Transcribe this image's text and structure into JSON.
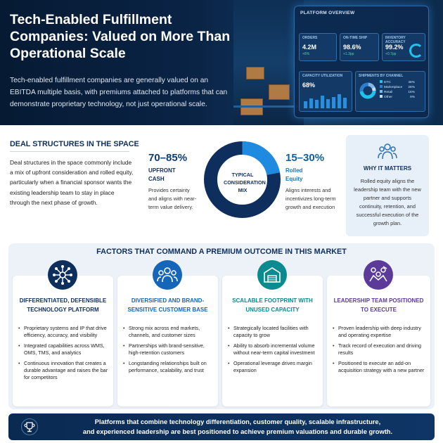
{
  "hero": {
    "title": "Tech-Enabled Fulfillment Companies: Valued on More Than Operational Scale",
    "subtitle": "Tech-enabled fulfillment companies are generally valued on an EBITDA multiple basis, with premiums attached to platforms that can demonstrate proprietary technology, not just operational scale."
  },
  "dashboard": {
    "title": "PLATFORM OVERVIEW",
    "orders": {
      "label": "ORDERS",
      "value": "4.2M",
      "delta": "+8%"
    },
    "on_time": {
      "label": "ON-TIME SHIP",
      "value": "98.6%",
      "delta": "+1.3pp"
    },
    "inventory": {
      "label": "INVENTORY ACCURACY",
      "value": "99.2%",
      "delta": "+0.7pp"
    },
    "capacity": {
      "label": "CAPACITY UTILIZATION",
      "value": "68%"
    },
    "shipments": {
      "label": "SHIPMENTS BY CHANNEL",
      "rows": [
        {
          "name": "DTC",
          "value": "48%"
        },
        {
          "name": "Marketplace",
          "value": "28%"
        },
        {
          "name": "Retail",
          "value": "16%"
        },
        {
          "name": "Other",
          "value": "8%"
        }
      ]
    }
  },
  "deal": {
    "heading": "DEAL STRUCTURES IN THE SPACE",
    "body": "Deal structures in the space commonly include a mix of upfront consideration and rolled equity, particularly when a financial sponsor wants the existing leadership team to stay in place through the next phase of growth.",
    "upfront": {
      "pct": "70–85%",
      "label_1": "UPFRONT",
      "label_2": "CASH",
      "text": "Provides certainty and aligns with near-term value delivery."
    },
    "rolled": {
      "pct": "15–30%",
      "label_1": "Rolled",
      "label_2": "Equity",
      "text": "Aligns interests and incentivizes long-term growth and execution"
    },
    "center_1": "TYPICAL",
    "center_2": "CONSIDERATION",
    "center_3": "MIX",
    "upfront_share": 0.78,
    "why": {
      "heading": "WHY IT MATTERS",
      "text": "Rolled equity aligns the leadership team with the new partner and supports continuity, retention, and successful execution of the growth plan."
    }
  },
  "factors": {
    "heading": "FACTORS THAT COMMAND A PREMIUM OUTCOME IN THIS MARKET",
    "cards": [
      {
        "title": "DIFFERENTIATED, DEFENSIBLE TECHNOLOGY PLATFORM",
        "icon": "network-icon",
        "accent": "#0e2f5e",
        "items": [
          "Proprietary systems and IP that drive efficiency, accuracy, and visibility",
          "Integrated capabilities across WMS, OMS, TMS, and analytics",
          "Continuous innovation that creates a durable advantage and raises the bar for competitors"
        ]
      },
      {
        "title": "DIVERSIFIED AND BRAND-SENSITIVE CUSTOMER BASE",
        "icon": "people-icon",
        "accent": "#1565b8",
        "items": [
          "Strong mix across end markets, channels, and customer sizes",
          "Partnerships with brand-sensitive, high-retention customers",
          "Longstanding relationships built on performance, scalability, and trust"
        ]
      },
      {
        "title": "SCALABLE FOOTPRINT WITH UNUSED CAPACITY",
        "icon": "warehouse-icon",
        "accent": "#0b8a8f",
        "items": [
          "Strategically located facilities with capacity to grow",
          "Ability to absorb incremental volume without near-term capital investment",
          "Operational leverage drives margin expansion"
        ]
      },
      {
        "title": "LEADERSHIP TEAM POSITIONED TO EXECUTE",
        "icon": "team-icon",
        "accent": "#5b3a9a",
        "items": [
          "Proven leadership with deep industry and operating expertise",
          "Track record of execution and driving results",
          "Positioned to execute an add-on acquisition strategy with a new partner"
        ]
      }
    ]
  },
  "banner": {
    "line_1": "Platforms that combine technology differentiation, customer quality, scalable infrastructure,",
    "line_2": "and experienced leadership are best positioned to achieve premium valuations and durable growth."
  }
}
